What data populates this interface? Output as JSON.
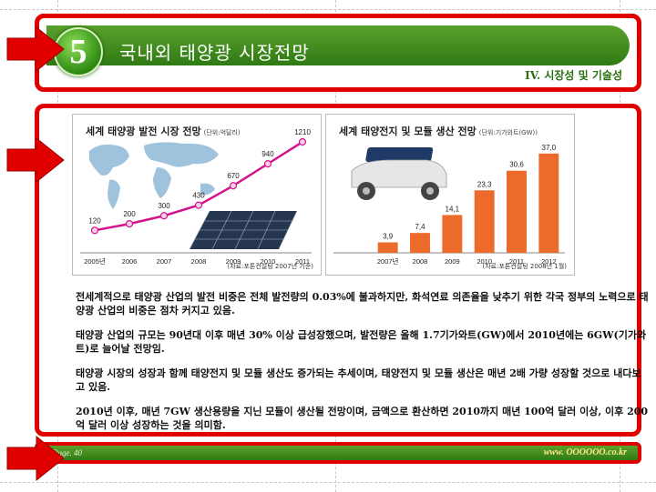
{
  "header": {
    "number": "5",
    "title": "국내외 태양광 시장전망",
    "subtitle": "IV. 시장성 및 기술성"
  },
  "charts": [
    {
      "title": "세계 태양광 발전 시장 전망",
      "unit": "(단위:억달러)",
      "source": "(자료:포톤컨설팅 2007년 기준)"
    },
    {
      "title": "세계 태양전지 및 모듈 생산 전망",
      "unit": "(단위:기가와트(GW))",
      "source": "(자료:포톤컨설팅 2008년 1월)"
    }
  ],
  "chart_data": [
    {
      "type": "line",
      "title": "세계 태양광 발전 시장 전망",
      "categories": [
        "2005년",
        "2006",
        "2007",
        "2008",
        "2009",
        "2010",
        "2011"
      ],
      "values": [
        120,
        200,
        300,
        430,
        670,
        940,
        1210
      ],
      "ylim": [
        0,
        1300
      ],
      "colors": {
        "line": "#d4148c",
        "marker": "#f5d0e8"
      }
    },
    {
      "type": "bar",
      "title": "세계 태양전지 및 모듈 생산 전망",
      "categories": [
        "2007년",
        "2008",
        "2009",
        "2010",
        "2011",
        "2012"
      ],
      "values": [
        3.9,
        7.4,
        14.1,
        23.3,
        30.6,
        37.0
      ],
      "value_labels": [
        "3,9",
        "7,4",
        "14,1",
        "23,3",
        "30,6",
        "37,0"
      ],
      "ylim": [
        0,
        40
      ],
      "colors": {
        "bar": "#ec6a2a"
      }
    }
  ],
  "paragraphs": [
    "전세계적으로 태양광 산업의 발전 비중은 전체 발전량의 0.03%에 불과하지만, 화석연료 의존율을 낮추기 위한 각국 정부의 노력으로 태양광 산업의 비중은 점차 커지고 있음.",
    "태양광 산업의 규모는 90년대 이후 매년 30% 이상 급성장했으며, 발전량은 올해 1.7기가와트(GW)에서 2010년에는 6GW(기가와트)로 늘어날 전망임.",
    "태양광 시장의 성장과 함께 태양전지 및 모듈 생산도 증가되는 추세이며, 태양전지 및 모듈 생산은 매년 2배 가량 성장할 것으로 내다보고 있음.",
    "2010년 이후, 매년 7GW 생산용량을 지닌 모듈이 생산될 전망이며, 금액으로 환산하면 2010까지 매년 100억 달러 이상, 이후 200억 달러 이상 성장하는 것을 의미함."
  ],
  "footer": {
    "page": "Page. 40",
    "site": "www. OOOOOO.co.kr"
  },
  "theme": {
    "accent": "#e00000",
    "green": "#3f8a1c"
  }
}
